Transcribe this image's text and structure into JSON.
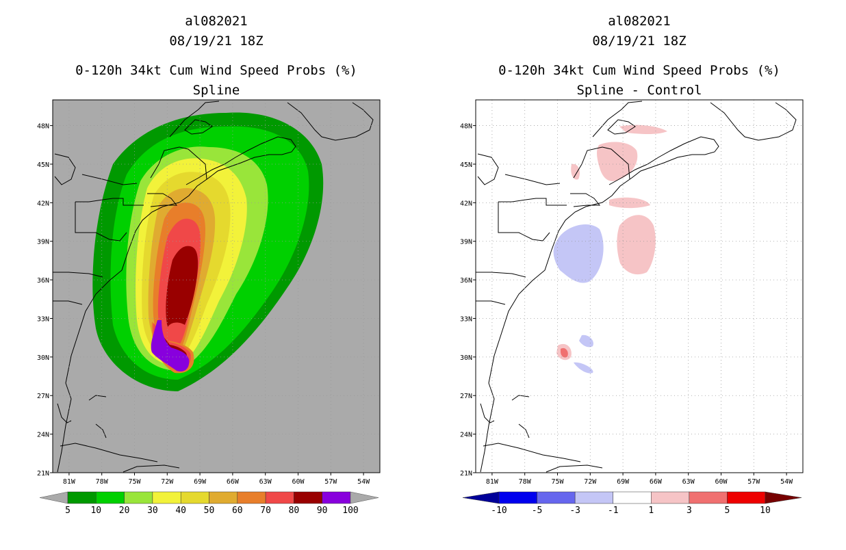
{
  "chart_data": [
    {
      "type": "filled-contour-map",
      "title_lines": [
        "al082021",
        "08/19/21 18Z",
        "0-120h 34kt Cum Wind Speed Probs (%)",
        "Spline"
      ],
      "x_ticks": [
        "81W",
        "78W",
        "75W",
        "72W",
        "69W",
        "66W",
        "63W",
        "60W",
        "57W",
        "54W"
      ],
      "y_ticks": [
        "48N",
        "45N",
        "42N",
        "39N",
        "36N",
        "33N",
        "30N",
        "27N",
        "24N",
        "21N"
      ],
      "lon_range": [
        -82.5,
        -52.5
      ],
      "lat_range": [
        21,
        50
      ],
      "background": "#aaaaaa",
      "levels": [
        5,
        10,
        20,
        30,
        40,
        50,
        60,
        70,
        80,
        90,
        100
      ],
      "colors": [
        "#009900",
        "#00d000",
        "#99e53a",
        "#f2f23a",
        "#e5d92e",
        "#e0ab30",
        "#e87e2a",
        "#f04848",
        "#990000",
        "#8800dd"
      ],
      "colorbar_labels": [
        "5",
        "10",
        "20",
        "30",
        "40",
        "50",
        "60",
        "70",
        "80",
        "90",
        "100"
      ]
    },
    {
      "type": "filled-contour-map",
      "title_lines": [
        "al082021",
        "08/19/21 18Z",
        "0-120h 34kt Cum Wind Speed Probs (%)",
        "Spline - Control"
      ],
      "x_ticks": [
        "81W",
        "78W",
        "75W",
        "72W",
        "69W",
        "66W",
        "63W",
        "60W",
        "57W",
        "54W"
      ],
      "y_ticks": [
        "48N",
        "45N",
        "42N",
        "39N",
        "36N",
        "33N",
        "30N",
        "27N",
        "24N",
        "21N"
      ],
      "lon_range": [
        -82.5,
        -52.5
      ],
      "lat_range": [
        21,
        50
      ],
      "background": "#ffffff",
      "levels": [
        -10,
        -5,
        -3,
        -1,
        1,
        3,
        5,
        10
      ],
      "colors": [
        "#000099",
        "#0000ee",
        "#6666ee",
        "#c4c6f6",
        "#ffffff",
        "#f6c4c6",
        "#f07070",
        "#ee0000",
        "#770000"
      ],
      "colorbar_labels": [
        "-10",
        "-5",
        "-3",
        "-1",
        "1",
        "3",
        "5",
        "10"
      ]
    }
  ]
}
